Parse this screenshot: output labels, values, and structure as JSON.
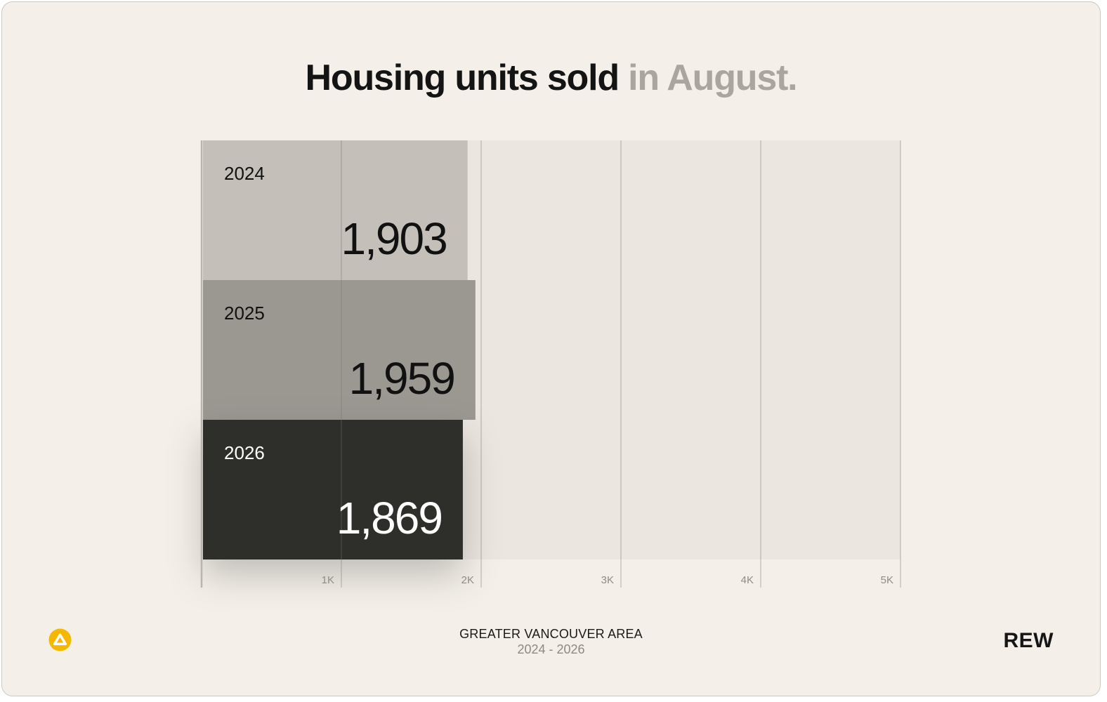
{
  "header": {
    "title_main": "Housing units sold",
    "title_accent": "in August."
  },
  "chart_data": {
    "type": "bar",
    "orientation": "horizontal",
    "categories": [
      "2024",
      "2025",
      "2026"
    ],
    "values": [
      1903,
      1959,
      1869
    ],
    "value_labels": [
      "1,903",
      "1,959",
      "1,869"
    ],
    "xlim": [
      0,
      5000
    ],
    "ticks": [
      1000,
      2000,
      3000,
      4000,
      5000
    ],
    "tick_labels": [
      "1K",
      "2K",
      "3K",
      "4K",
      "5K"
    ],
    "grid": true,
    "colors": [
      "#c4bfb8",
      "#9b9892",
      "#2e2d2b"
    ],
    "label_colors": [
      "#111111",
      "#111111",
      "#ffffff"
    ]
  },
  "footer": {
    "region": "GREATER VANCOUVER AREA",
    "range": "2024 - 2026",
    "brand": "REW",
    "brand_icon": "rew-triangle-icon",
    "brand_icon_color": "#f5b800"
  }
}
